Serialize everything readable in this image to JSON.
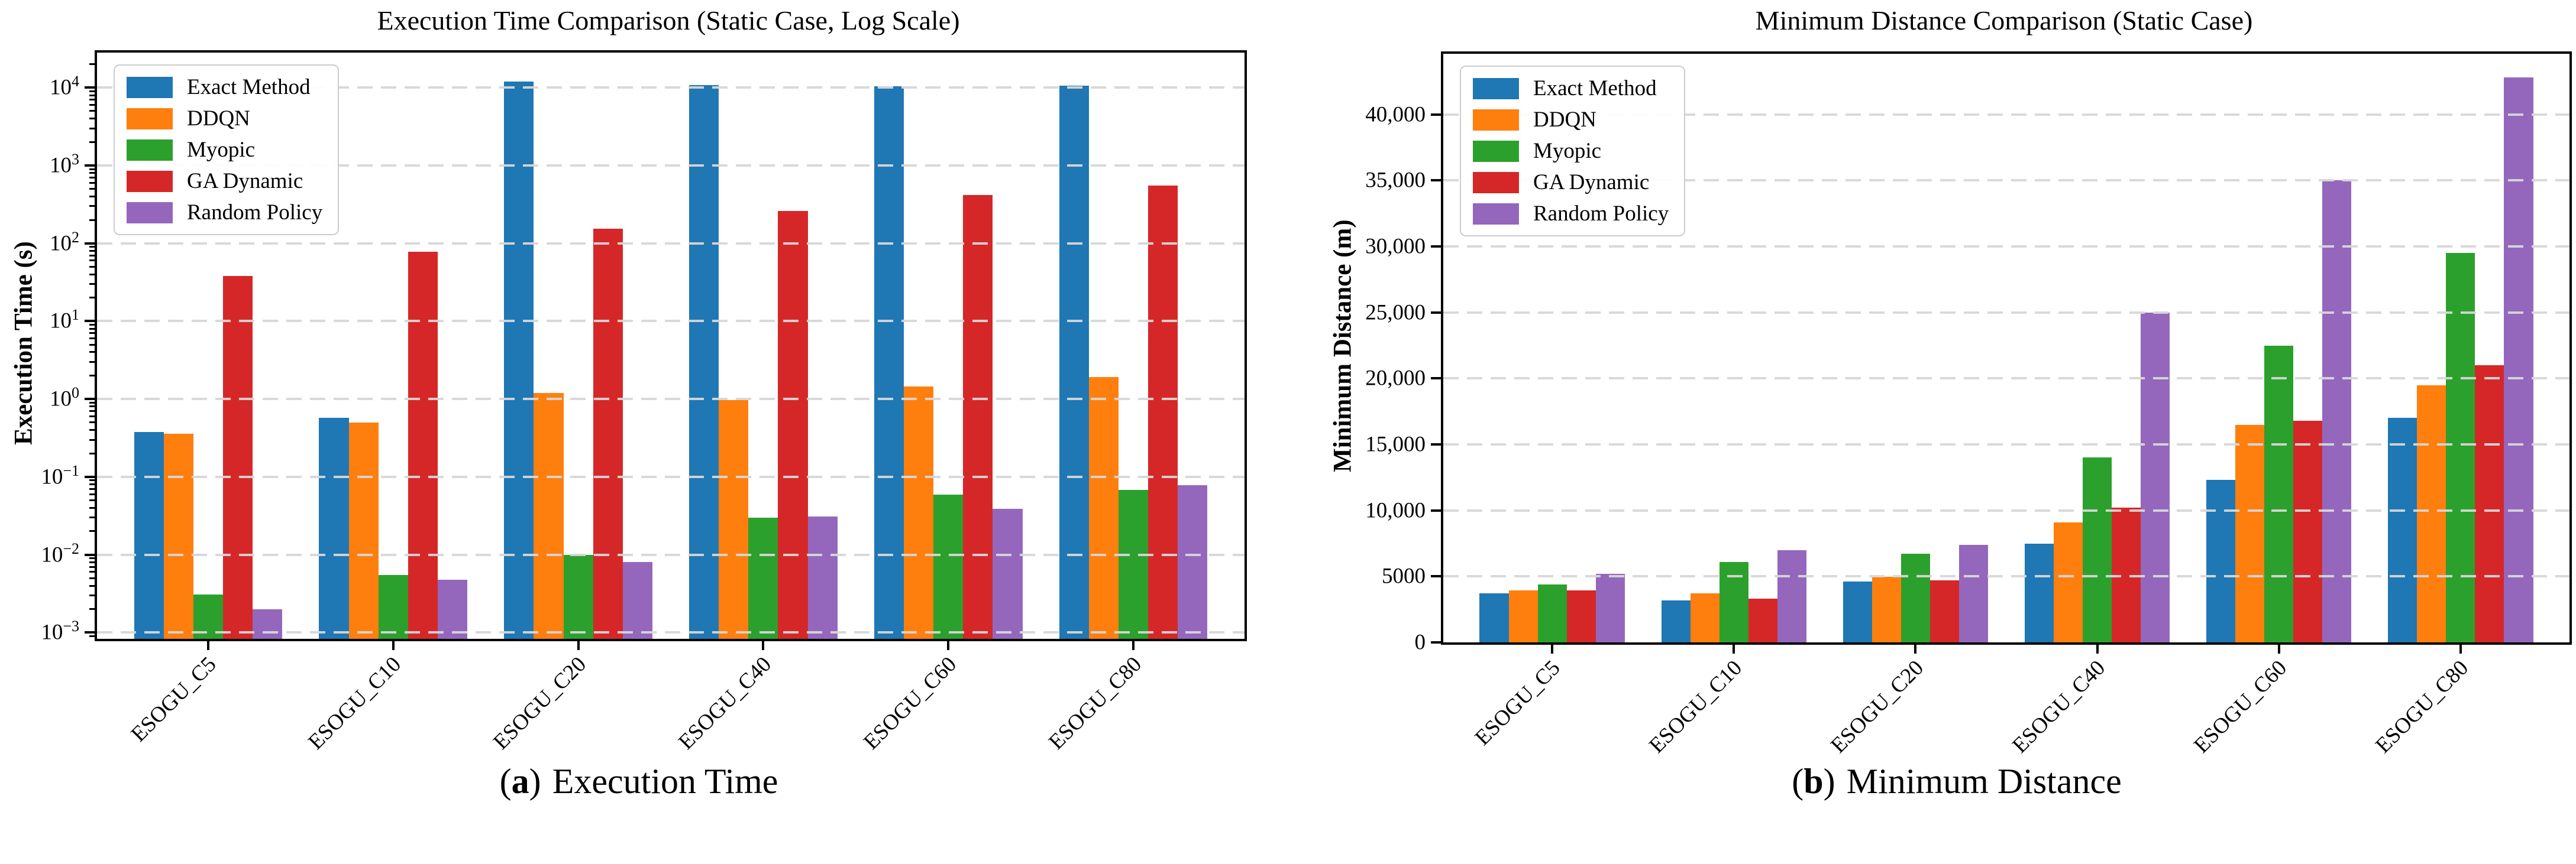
{
  "colors": {
    "background": "#ffffff",
    "spine": "#000000",
    "grid": "#d7d7d7",
    "exact_method": "#1f77b4",
    "ddqn": "#ff7f0e",
    "myopic": "#2ca02c",
    "ga_dynamic": "#d62728",
    "random_policy": "#9467bd"
  },
  "chart_data": [
    {
      "type": "bar",
      "title": "Execution Time Comparison (Static Case, Log Scale)",
      "xlabel": "",
      "ylabel": "Execution Time (s)",
      "yscale": "log",
      "ylim": [
        0.00083,
        28200
      ],
      "grid": "y-dashed",
      "legend_position": "upper-left",
      "categories": [
        "ESOGU_C5",
        "ESOGU_C10",
        "ESOGU_C20",
        "ESOGU_C40",
        "ESOGU_C60",
        "ESOGU_C80"
      ],
      "yticks": [
        {
          "value": 0.001,
          "base": "10",
          "exp": "−3"
        },
        {
          "value": 0.01,
          "base": "10",
          "exp": "−2"
        },
        {
          "value": 0.1,
          "base": "10",
          "exp": "−1"
        },
        {
          "value": 1,
          "base": "10",
          "exp": "0"
        },
        {
          "value": 10,
          "base": "10",
          "exp": "1"
        },
        {
          "value": 100,
          "base": "10",
          "exp": "2"
        },
        {
          "value": 1000,
          "base": "10",
          "exp": "3"
        },
        {
          "value": 10000,
          "base": "10",
          "exp": "4"
        }
      ],
      "series": [
        {
          "name": "Exact Method",
          "color": "#1f77b4",
          "values": [
            0.38,
            0.57,
            12000,
            10700,
            10500,
            10600
          ]
        },
        {
          "name": "DDQN",
          "color": "#ff7f0e",
          "values": [
            0.36,
            0.5,
            1.2,
            0.97,
            1.45,
            1.9
          ]
        },
        {
          "name": "Myopic",
          "color": "#2ca02c",
          "values": [
            0.0031,
            0.0055,
            0.01,
            0.03,
            0.059,
            0.068
          ]
        },
        {
          "name": "GA Dynamic",
          "color": "#d62728",
          "values": [
            38,
            78,
            155,
            260,
            420,
            550
          ]
        },
        {
          "name": "Random Policy",
          "color": "#9467bd",
          "values": [
            0.002,
            0.0048,
            0.008,
            0.031,
            0.039,
            0.078
          ]
        }
      ],
      "caption": {
        "open": "(",
        "letter": "a",
        "close": ")",
        "text": "Execution Time"
      }
    },
    {
      "type": "bar",
      "title": "Minimum Distance Comparison (Static Case)",
      "xlabel": "",
      "ylabel": "Minimum Distance (m)",
      "yscale": "linear",
      "ylim": [
        0,
        44600
      ],
      "grid": "y-dashed",
      "legend_position": "upper-left",
      "categories": [
        "ESOGU_C5",
        "ESOGU_C10",
        "ESOGU_C20",
        "ESOGU_C40",
        "ESOGU_C60",
        "ESOGU_C80"
      ],
      "yticks": [
        {
          "value": 0,
          "label": "0"
        },
        {
          "value": 5000,
          "label": "5000"
        },
        {
          "value": 10000,
          "label": "10,000"
        },
        {
          "value": 15000,
          "label": "15,000"
        },
        {
          "value": 20000,
          "label": "20,000"
        },
        {
          "value": 25000,
          "label": "25,000"
        },
        {
          "value": 30000,
          "label": "30,000"
        },
        {
          "value": 35000,
          "label": "35,000"
        },
        {
          "value": 40000,
          "label": "40,000"
        }
      ],
      "series": [
        {
          "name": "Exact Method",
          "color": "#1f77b4",
          "values": [
            3700,
            3200,
            4600,
            7500,
            12300,
            17000
          ]
        },
        {
          "name": "DDQN",
          "color": "#ff7f0e",
          "values": [
            3950,
            3730,
            4950,
            9100,
            16500,
            19500
          ]
        },
        {
          "name": "Myopic",
          "color": "#2ca02c",
          "values": [
            4400,
            6070,
            6700,
            14000,
            22500,
            29500
          ]
        },
        {
          "name": "GA Dynamic",
          "color": "#d62728",
          "values": [
            3930,
            3300,
            4700,
            10200,
            16800,
            21000
          ]
        },
        {
          "name": "Random Policy",
          "color": "#9467bd",
          "values": [
            5200,
            7000,
            7400,
            25000,
            35000,
            42800
          ]
        }
      ],
      "caption": {
        "open": "(",
        "letter": "b",
        "close": ")",
        "text": "Minimum Distance"
      }
    }
  ]
}
